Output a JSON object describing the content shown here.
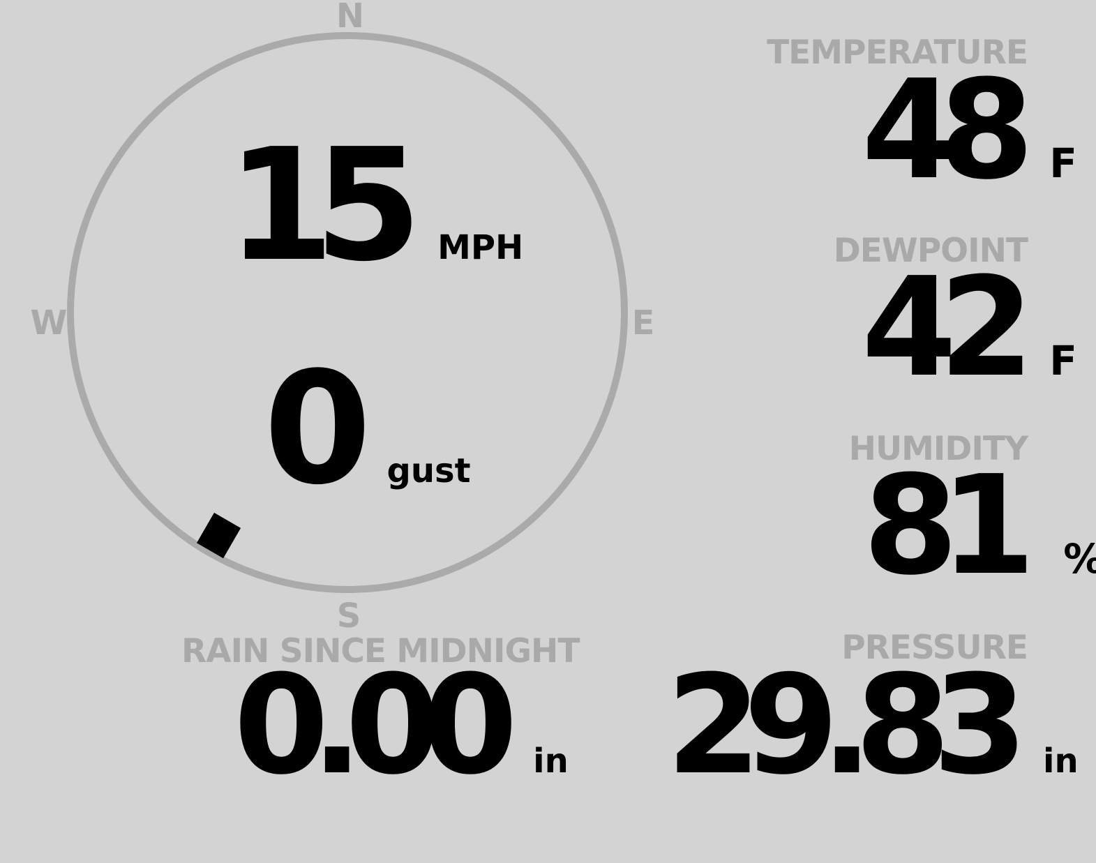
{
  "colors": {
    "background": "#d3d3d3",
    "label": "#a9a9a9",
    "value": "#000000",
    "dial": "#aaaaaa"
  },
  "wind": {
    "speed": "15",
    "speed_unit": "MPH",
    "gust": "0",
    "gust_unit": "gust",
    "direction_deg": 210,
    "compass": {
      "n": "N",
      "e": "E",
      "s": "S",
      "w": "W"
    }
  },
  "temperature": {
    "label": "TEMPERATURE",
    "value": "48",
    "unit": "F"
  },
  "dewpoint": {
    "label": "DEWPOINT",
    "value": "42",
    "unit": "F"
  },
  "humidity": {
    "label": "HUMIDITY",
    "value": "81",
    "unit": "%"
  },
  "pressure": {
    "label": "PRESSURE",
    "value": "29.83",
    "unit": "in"
  },
  "rain": {
    "label": "RAIN SINCE MIDNIGHT",
    "value": "0.00",
    "unit": "in"
  }
}
